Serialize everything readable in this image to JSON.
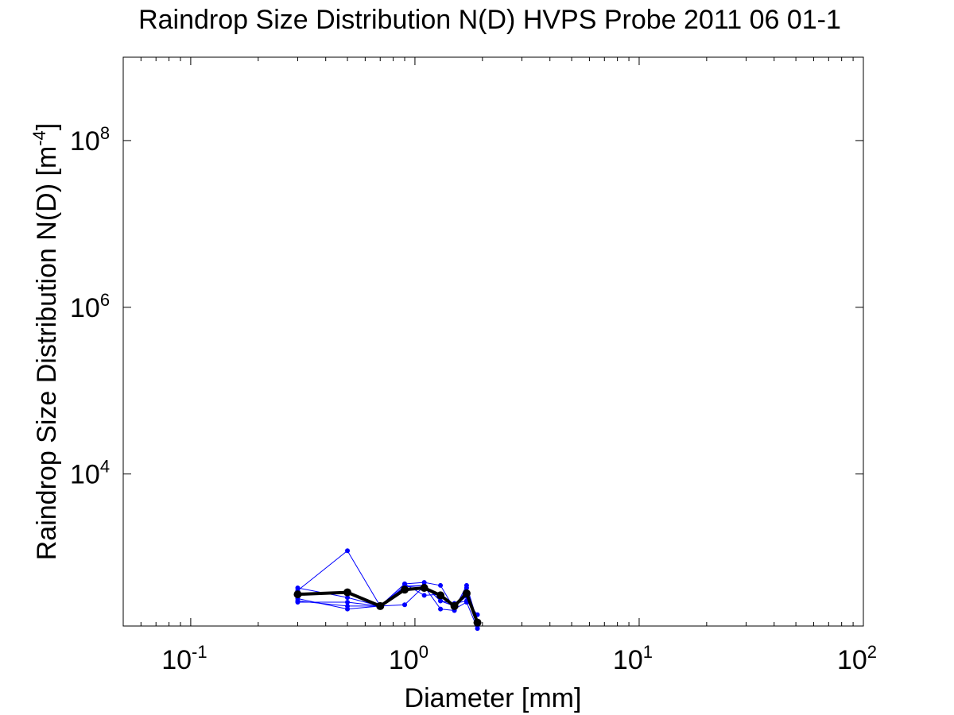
{
  "chart_data": {
    "type": "line",
    "title": "Raindrop Size Distribution N(D) HVPS Probe 2011 06 01-1",
    "xlabel": "Diameter [mm]",
    "ylabel": "Raindrop Size Distribution N(D) [m",
    "ylabel_exp": "-4",
    "ylabel_end": "]",
    "xscale": "log",
    "yscale": "log",
    "xlim": [
      0.05,
      100
    ],
    "ylim": [
      150,
      1000000000
    ],
    "x_ticks": [
      {
        "base": "10",
        "exp": "-1",
        "value": 0.1
      },
      {
        "base": "10",
        "exp": "0",
        "value": 1
      },
      {
        "base": "10",
        "exp": "1",
        "value": 10
      },
      {
        "base": "10",
        "exp": "2",
        "value": 100
      }
    ],
    "y_ticks": [
      {
        "base": "10",
        "exp": "4",
        "value": 10000
      },
      {
        "base": "10",
        "exp": "6",
        "value": 1000000
      },
      {
        "base": "10",
        "exp": "8",
        "value": 100000000
      }
    ],
    "grid": false,
    "legend": "none",
    "colors": {
      "individual": "#0000ff",
      "mean": "#000000"
    },
    "series": [
      {
        "x": [
          0.3,
          0.5,
          0.7,
          0.9,
          1.1,
          1.3,
          1.5,
          1.7,
          1.9
        ],
        "y": [
          400,
          1200,
          260,
          480,
          500,
          460,
          240,
          460,
          170
        ]
      },
      {
        "x": [
          0.3,
          0.5,
          0.7,
          0.9,
          1.1,
          1.3,
          1.5,
          1.7,
          1.9
        ],
        "y": [
          320,
          240,
          260,
          270,
          450,
          240,
          230,
          430,
          170
        ]
      },
      {
        "x": [
          0.3,
          0.5,
          0.7,
          0.9,
          1.1,
          1.3,
          1.5,
          1.7,
          1.9
        ],
        "y": [
          300,
          260,
          260,
          450,
          460,
          300,
          260,
          340,
          150
        ]
      },
      {
        "x": [
          0.3,
          0.5,
          0.7,
          0.9,
          1.1,
          1.3,
          1.5,
          1.7,
          1.9
        ],
        "y": [
          290,
          290,
          260,
          480,
          350,
          360,
          240,
          290,
          140
        ]
      },
      {
        "x": [
          0.3,
          0.5,
          0.7,
          0.9,
          1.1,
          1.3,
          1.5,
          1.7,
          1.9
        ],
        "y": [
          430,
          330,
          260,
          440,
          460,
          300,
          280,
          300,
          205
        ]
      }
    ],
    "mean_series": {
      "x": [
        0.3,
        0.5,
        0.7,
        0.9,
        1.1,
        1.3,
        1.5,
        1.7,
        1.9
      ],
      "y": [
        360,
        380,
        260,
        410,
        430,
        350,
        260,
        370,
        165
      ]
    }
  }
}
